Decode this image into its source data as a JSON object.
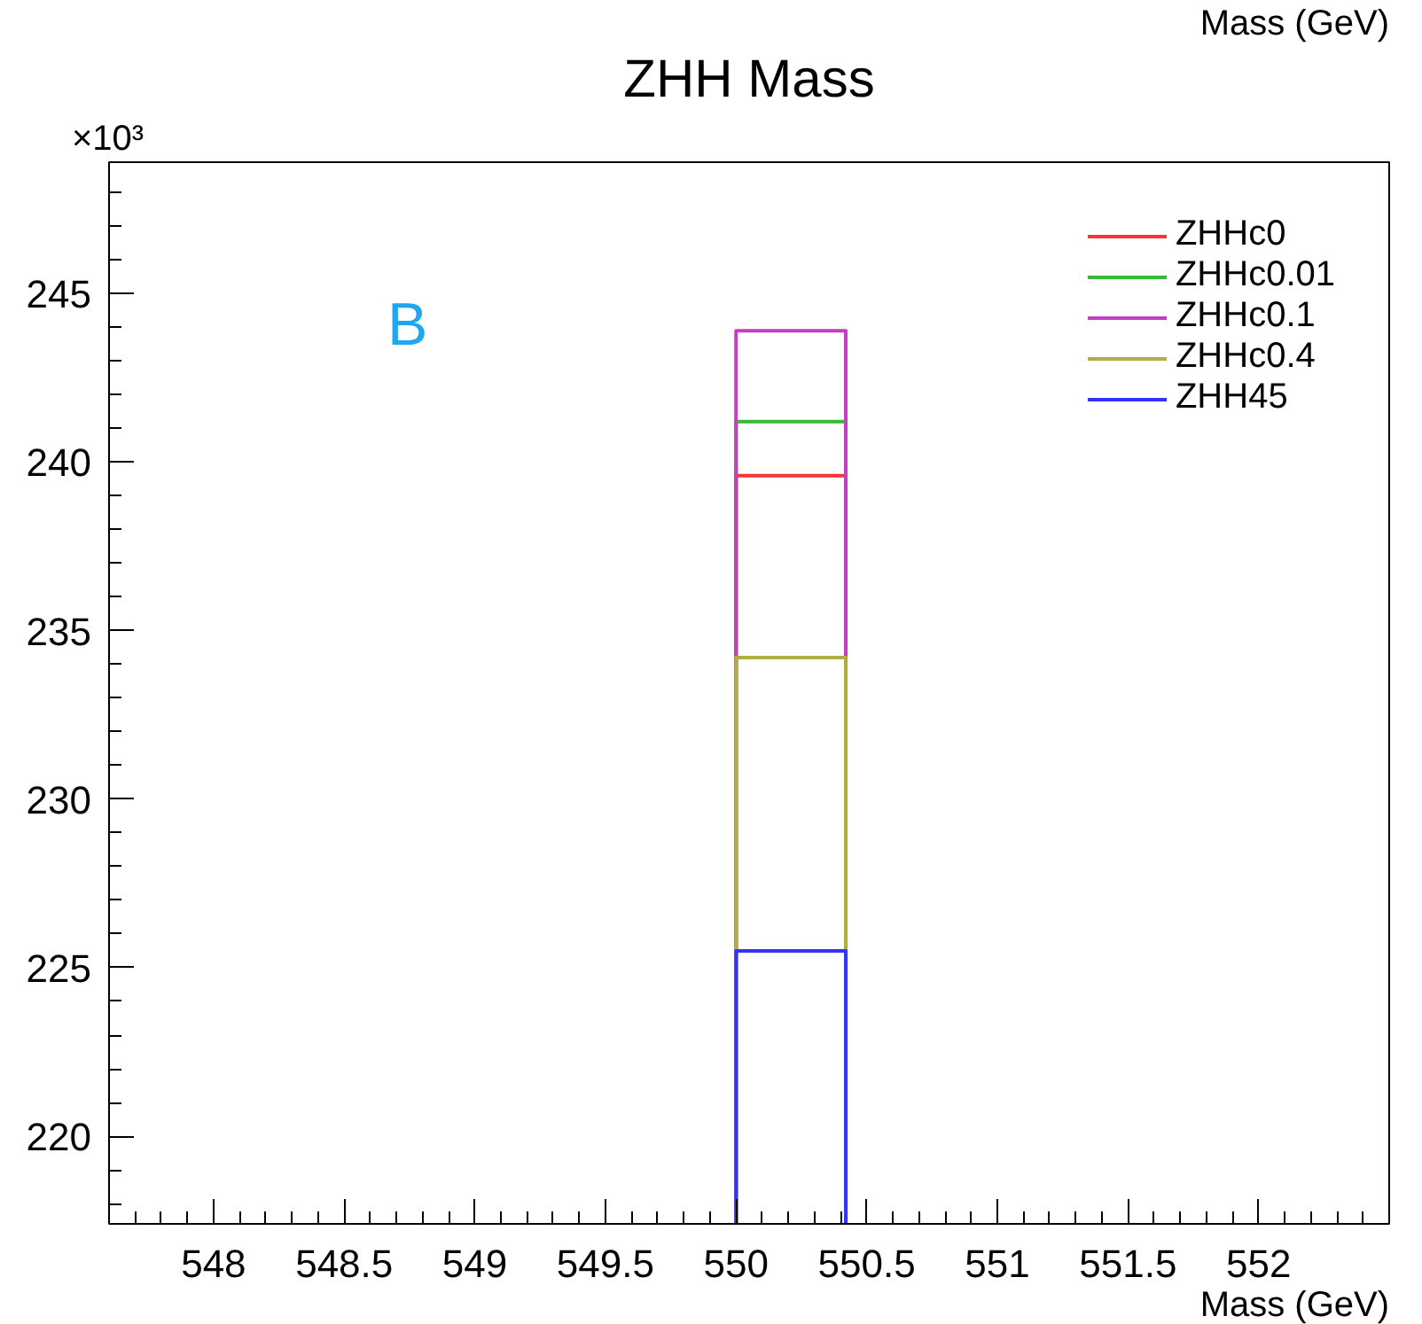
{
  "chart_data": {
    "type": "histogram",
    "title": "ZHH Mass",
    "xlabel": "Mass (GeV)",
    "annotations": [
      "×10³",
      "B",
      "Mass (GeV)"
    ],
    "bins": [
      550,
      550.42
    ],
    "series": [
      {
        "name": "ZHHc0",
        "color": "#ff3333",
        "values": [
          239.6
        ]
      },
      {
        "name": "ZHHc0.01",
        "color": "#33bb33",
        "values": [
          241.2
        ]
      },
      {
        "name": "ZHHc0.1",
        "color": "#c040c0",
        "values": [
          243.9
        ]
      },
      {
        "name": "ZHHc0.4",
        "color": "#b0b040",
        "values": [
          234.2
        ]
      },
      {
        "name": "ZHH45",
        "color": "#3333ff",
        "values": [
          225.5
        ]
      }
    ],
    "xlim": [
      547.6,
      552.5
    ],
    "ylim": [
      217.4,
      248.9
    ],
    "xticks": [
      548,
      548.5,
      549,
      549.5,
      550,
      550.5,
      551,
      551.5,
      552
    ],
    "yticks": [
      220,
      225,
      230,
      235,
      240,
      245
    ],
    "grid": false,
    "legend": "top right"
  }
}
